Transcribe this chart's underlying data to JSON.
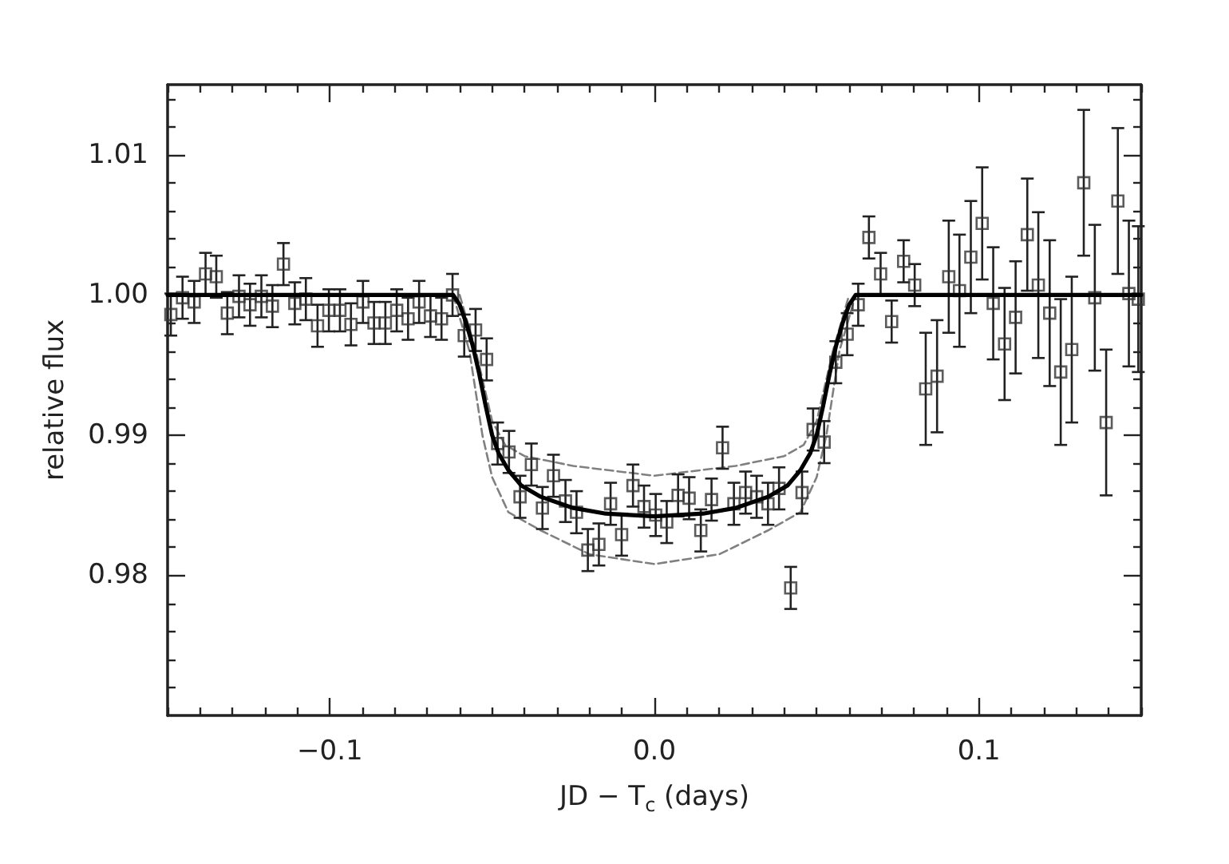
{
  "chart_data": {
    "type": "scatter",
    "xlabel": "JD − T$_{c}$ (days)",
    "ylabel": "relative flux",
    "xlim": [
      -0.15,
      0.15
    ],
    "ylim": [
      0.97,
      1.015
    ],
    "xticks": [
      {
        "value": -0.15,
        "label": null
      },
      {
        "value": -0.14,
        "label": null
      },
      {
        "value": -0.13,
        "label": null
      },
      {
        "value": -0.12,
        "label": null
      },
      {
        "value": -0.11,
        "label": null
      },
      {
        "value": -0.1,
        "label": "−0.1"
      },
      {
        "value": -0.09,
        "label": null
      },
      {
        "value": -0.08,
        "label": null
      },
      {
        "value": -0.07,
        "label": null
      },
      {
        "value": -0.06,
        "label": null
      },
      {
        "value": -0.05,
        "label": null
      },
      {
        "value": -0.04,
        "label": null
      },
      {
        "value": -0.03,
        "label": null
      },
      {
        "value": -0.02,
        "label": null
      },
      {
        "value": -0.01,
        "label": null
      },
      {
        "value": 0,
        "label": "0.0"
      },
      {
        "value": 0.01,
        "label": null
      },
      {
        "value": 0.02,
        "label": null
      },
      {
        "value": 0.03,
        "label": null
      },
      {
        "value": 0.04,
        "label": null
      },
      {
        "value": 0.05,
        "label": null
      },
      {
        "value": 0.06,
        "label": null
      },
      {
        "value": 0.07,
        "label": null
      },
      {
        "value": 0.08,
        "label": null
      },
      {
        "value": 0.09,
        "label": null
      },
      0.1,
      {
        "value": 0.11,
        "label": null
      },
      {
        "value": 0.12,
        "label": null
      },
      {
        "value": 0.13,
        "label": null
      },
      {
        "value": 0.14,
        "label": null
      },
      {
        "value": 0.15,
        "label": null
      }
    ],
    "yticks": [
      {
        "value": 0.972,
        "label": null
      },
      {
        "value": 0.974,
        "label": null
      },
      {
        "value": 0.976,
        "label": null
      },
      {
        "value": 0.978,
        "label": null
      },
      0.98,
      {
        "value": 0.982,
        "label": null
      },
      {
        "value": 0.984,
        "label": null
      },
      {
        "value": 0.986,
        "label": null
      },
      {
        "value": 0.988,
        "label": null
      },
      0.99,
      {
        "value": 0.992,
        "label": null
      },
      {
        "value": 0.994,
        "label": null
      },
      {
        "value": 0.996,
        "label": null
      },
      {
        "value": 0.998,
        "label": null
      },
      {
        "value": 1.0,
        "label": "1.00"
      },
      {
        "value": 1.002,
        "label": null
      },
      {
        "value": 1.004,
        "label": null
      },
      {
        "value": 1.006,
        "label": null
      },
      {
        "value": 1.008,
        "label": null
      },
      1.01,
      {
        "value": 1.012,
        "label": null
      },
      {
        "value": 1.014,
        "label": null
      }
    ],
    "grid": false,
    "series": [
      {
        "color": "#333333",
        "marker": "square",
        "x": [
          -0.149,
          -0.1454,
          -0.1418,
          -0.1383,
          -0.135,
          -0.1316,
          -0.128,
          -0.1246,
          -0.1211,
          -0.1177,
          -0.1143,
          -0.1108,
          -0.1074,
          -0.1038,
          -0.1003,
          -0.0969,
          -0.0935,
          -0.0898,
          -0.0864,
          -0.0829,
          -0.0794,
          -0.0759,
          -0.0725,
          -0.069,
          -0.0656,
          -0.0622,
          -0.0586,
          -0.0551,
          -0.0517,
          -0.0483,
          -0.0448,
          -0.0414,
          -0.0379,
          -0.0345,
          -0.0311,
          -0.0274,
          -0.024,
          -0.0205,
          -0.0171,
          -0.0135,
          -0.0101,
          -0.0066,
          -0.0032,
          0.0004,
          0.0038,
          0.0073,
          0.0107,
          0.0143,
          0.0176,
          0.021,
          0.0245,
          0.0281,
          0.0315,
          0.035,
          0.0384,
          0.042,
          0.0455,
          0.0489,
          0.0523,
          0.0559,
          0.0594,
          0.0628,
          0.0661,
          0.0697,
          0.0731,
          0.0768,
          0.0802,
          0.0836,
          0.0871,
          0.0907,
          0.094,
          0.0975,
          0.101,
          0.1044,
          0.1079,
          0.1113,
          0.1149,
          0.1183,
          0.1218,
          0.1252,
          0.1286,
          0.1323,
          0.1357,
          0.1392,
          0.1428,
          0.1462,
          0.1491
        ],
        "values": [
          0.9986,
          0.9998,
          0.9995,
          1.0015,
          1.0013,
          0.9987,
          0.9999,
          0.9993,
          0.9999,
          0.9992,
          1.0022,
          0.9994,
          0.9997,
          0.9978,
          0.9989,
          0.9989,
          0.9979,
          0.9995,
          0.998,
          0.998,
          0.9989,
          0.9983,
          0.9995,
          0.9985,
          0.9983,
          1.0,
          0.9971,
          0.9975,
          0.9954,
          0.9894,
          0.9888,
          0.9856,
          0.9879,
          0.9848,
          0.9871,
          0.9853,
          0.9845,
          0.9818,
          0.9822,
          0.9851,
          0.9829,
          0.9864,
          0.9849,
          0.9843,
          0.9838,
          0.9857,
          0.9855,
          0.9832,
          0.9854,
          0.9891,
          0.9851,
          0.9859,
          0.9856,
          0.9851,
          0.9862,
          0.9791,
          0.9859,
          0.9904,
          0.9895,
          0.9952,
          0.9972,
          0.9993,
          1.0041,
          1.0015,
          0.9981,
          1.0024,
          1.0007,
          0.9933,
          0.9942,
          1.0013,
          1.0003,
          1.0027,
          1.0051,
          0.9994,
          0.9965,
          0.9984,
          1.0043,
          1.0007,
          0.9987,
          0.9945,
          0.9961,
          1.008,
          0.9998,
          0.9909,
          1.0067,
          1.0001,
          0.9997
        ],
        "errors": [
          0.0015,
          0.0015,
          0.0015,
          0.0015,
          0.0015,
          0.0015,
          0.0015,
          0.0015,
          0.0015,
          0.0015,
          0.0015,
          0.0015,
          0.0015,
          0.0015,
          0.0015,
          0.0015,
          0.0015,
          0.0015,
          0.0015,
          0.0015,
          0.0015,
          0.0015,
          0.0015,
          0.0015,
          0.0015,
          0.0015,
          0.0015,
          0.0015,
          0.0015,
          0.0015,
          0.0015,
          0.0015,
          0.0015,
          0.0015,
          0.0015,
          0.0015,
          0.0015,
          0.0015,
          0.0015,
          0.0015,
          0.0015,
          0.0015,
          0.0015,
          0.0015,
          0.0015,
          0.0015,
          0.0015,
          0.0015,
          0.0015,
          0.0015,
          0.0015,
          0.0015,
          0.0015,
          0.0015,
          0.0015,
          0.0015,
          0.0015,
          0.0015,
          0.0015,
          0.0015,
          0.0015,
          0.0015,
          0.0015,
          0.0015,
          0.0015,
          0.0015,
          0.0015,
          0.004,
          0.004,
          0.004,
          0.004,
          0.004,
          0.004,
          0.004,
          0.004,
          0.004,
          0.004,
          0.0052,
          0.0052,
          0.0052,
          0.0052,
          0.0052,
          0.0052,
          0.0052,
          0.0052,
          0.0052,
          0.0052
        ]
      },
      {
        "type": "line",
        "color": "#000000",
        "marker": "none",
        "line_style": "solid",
        "x": [
          -0.15,
          -0.062,
          -0.06,
          -0.058,
          -0.056,
          -0.054,
          -0.052,
          -0.05,
          -0.048,
          -0.045,
          -0.041,
          -0.035,
          -0.025,
          -0.015,
          0,
          0.015,
          0.025,
          0.035,
          0.041,
          0.045,
          0.048,
          0.05,
          0.052,
          0.054,
          0.056,
          0.058,
          0.06,
          0.062,
          0.15
        ],
        "values": [
          1.0,
          1.0,
          0.9993,
          0.998,
          0.9964,
          0.9944,
          0.9921,
          0.99,
          0.9887,
          0.9875,
          0.9864,
          0.9856,
          0.9848,
          0.9844,
          0.9842,
          0.9844,
          0.9848,
          0.9856,
          0.9864,
          0.9875,
          0.9887,
          0.99,
          0.9921,
          0.9944,
          0.9964,
          0.998,
          0.9993,
          1.0,
          1.0
        ]
      },
      {
        "type": "line",
        "color": "#808080",
        "marker": "none",
        "line_style": "dashed",
        "x": [
          -0.06,
          -0.055,
          -0.05,
          -0.046,
          -0.04,
          -0.025,
          0,
          0.025,
          0.04,
          0.046,
          0.05,
          0.055,
          0.06
        ],
        "values": [
          1.0,
          0.996,
          0.991,
          0.9893,
          0.9885,
          0.9878,
          0.9871,
          0.9878,
          0.9885,
          0.9893,
          0.991,
          0.996,
          1.0
        ]
      },
      {
        "type": "line",
        "color": "#808080",
        "marker": "none",
        "line_style": "dashed",
        "x": [
          -0.062,
          -0.057,
          -0.053,
          -0.05,
          -0.045,
          -0.035,
          -0.02,
          0,
          0.02,
          0.035,
          0.045,
          0.05,
          0.053,
          0.057,
          0.062
        ],
        "values": [
          1.0,
          0.996,
          0.99,
          0.987,
          0.9845,
          0.9832,
          0.9815,
          0.9808,
          0.9815,
          0.9832,
          0.9845,
          0.987,
          0.99,
          0.996,
          1.0
        ]
      }
    ]
  }
}
